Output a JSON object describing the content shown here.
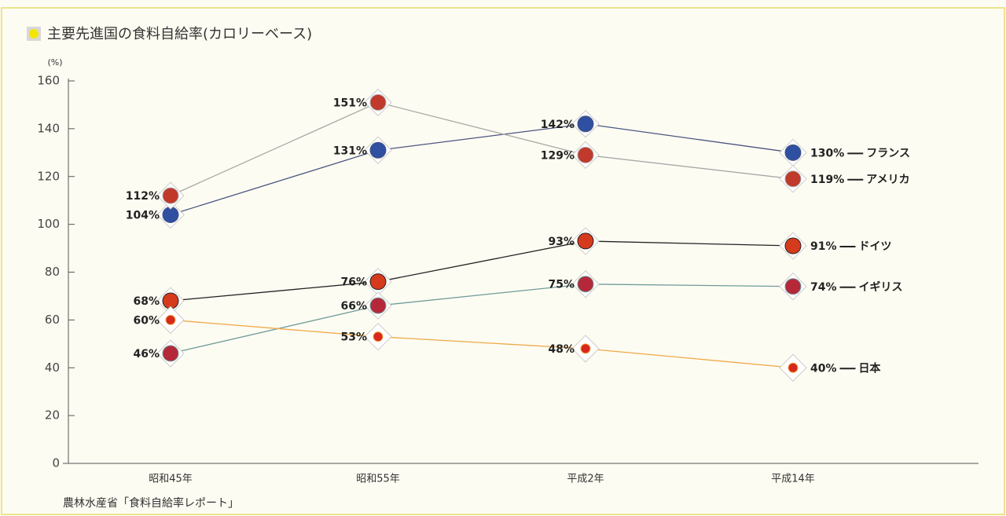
{
  "chart_data": {
    "type": "line",
    "title": "主要先進国の食料自給率(カロリーベース)",
    "y_unit": "(%)",
    "source": "農林水産省「食料自給率レポート」",
    "categories": [
      "昭和45年",
      "昭和55年",
      "平成2年",
      "平成14年"
    ],
    "series": [
      {
        "name": "フランス",
        "color": "#4a5680",
        "marker_color": "#2f4fa0",
        "values": [
          104,
          131,
          142,
          130
        ],
        "value_labels": [
          "104%",
          "131%",
          "142%",
          "130%"
        ]
      },
      {
        "name": "アメリカ",
        "color": "#a8a8a8",
        "marker_color": "#c0392b",
        "values": [
          112,
          151,
          129,
          119
        ],
        "value_labels": [
          "112%",
          "151%",
          "129%",
          "119%"
        ]
      },
      {
        "name": "ドイツ",
        "color": "#222222",
        "marker_color": "#d63a1c",
        "values": [
          68,
          76,
          93,
          91
        ],
        "value_labels": [
          "68%",
          "76%",
          "93%",
          "91%"
        ]
      },
      {
        "name": "イギリス",
        "color": "#6f9c9a",
        "marker_color": "#b5283a",
        "values": [
          46,
          66,
          75,
          74
        ],
        "value_labels": [
          "46%",
          "66%",
          "75%",
          "74%"
        ]
      },
      {
        "name": "日本",
        "color": "#f0a848",
        "marker_color": "#d8281c",
        "values": [
          60,
          53,
          48,
          40
        ],
        "value_labels": [
          "60%",
          "53%",
          "48%",
          "40%"
        ]
      }
    ],
    "ylim": [
      0,
      160
    ],
    "yticks": [
      0,
      20,
      40,
      60,
      80,
      100,
      120,
      140,
      160
    ]
  }
}
